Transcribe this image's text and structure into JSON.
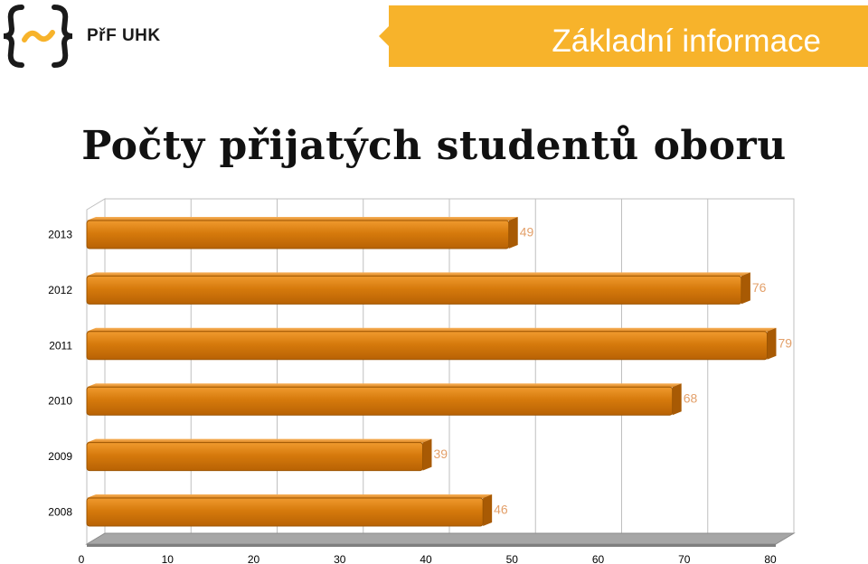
{
  "header": {
    "logo_text": "PřF UHK",
    "banner_title": "Základní informace"
  },
  "page_title": "Počty přijatých studentů oboru",
  "colors": {
    "accent": "#f7b32b",
    "bar": "#d67a0c",
    "data_label": "#e3a06a"
  },
  "chart_data": {
    "type": "bar",
    "orientation": "horizontal",
    "style": "3d",
    "categories": [
      "2013",
      "2012",
      "2011",
      "2010",
      "2009",
      "2008"
    ],
    "values": [
      49,
      76,
      79,
      68,
      39,
      46
    ],
    "data_labels": [
      "49",
      "76",
      "79",
      "68",
      "39",
      "46"
    ],
    "xlim": [
      0,
      80
    ],
    "x_ticks": [
      "0",
      "10",
      "20",
      "30",
      "40",
      "50",
      "60",
      "70",
      "80"
    ],
    "grid": "vertical",
    "legend": "none"
  }
}
